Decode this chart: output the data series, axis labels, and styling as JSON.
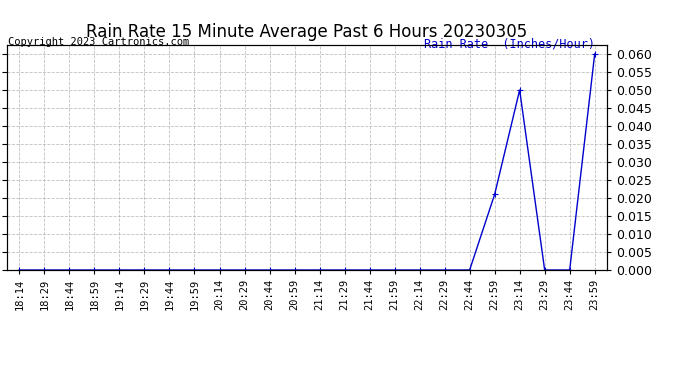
{
  "title": "Rain Rate 15 Minute Average Past 6 Hours 20230305",
  "copyright": "Copyright 2023 Cartronics.com",
  "ylabel": "Rain Rate  (Inches/Hour)",
  "ylabel_color": "#0000cc",
  "line_color": "#0000cc",
  "background_color": "#ffffff",
  "grid_color": "#b0b0b0",
  "ylim": [
    0.0,
    0.0625
  ],
  "yticks": [
    0.0,
    0.005,
    0.01,
    0.015,
    0.02,
    0.025,
    0.03,
    0.035,
    0.04,
    0.045,
    0.05,
    0.055,
    0.06
  ],
  "x_labels": [
    "18:14",
    "18:29",
    "18:44",
    "18:59",
    "19:14",
    "19:29",
    "19:44",
    "19:59",
    "20:14",
    "20:29",
    "20:44",
    "20:59",
    "21:14",
    "21:29",
    "21:44",
    "21:59",
    "22:14",
    "22:29",
    "22:44",
    "22:59",
    "23:14",
    "23:29",
    "23:44",
    "23:59"
  ],
  "y_values": [
    0.0,
    0.0,
    0.0,
    0.0,
    0.0,
    0.0,
    0.0,
    0.0,
    0.0,
    0.0,
    0.0,
    0.0,
    0.0,
    0.0,
    0.0,
    0.0,
    0.0,
    0.0,
    0.0,
    0.021,
    0.05,
    0.0,
    0.0,
    0.06
  ],
  "title_fontsize": 12,
  "copyright_fontsize": 7.5,
  "ylabel_fontsize": 8.5,
  "tick_fontsize": 7.5,
  "ytick_fontsize": 9
}
